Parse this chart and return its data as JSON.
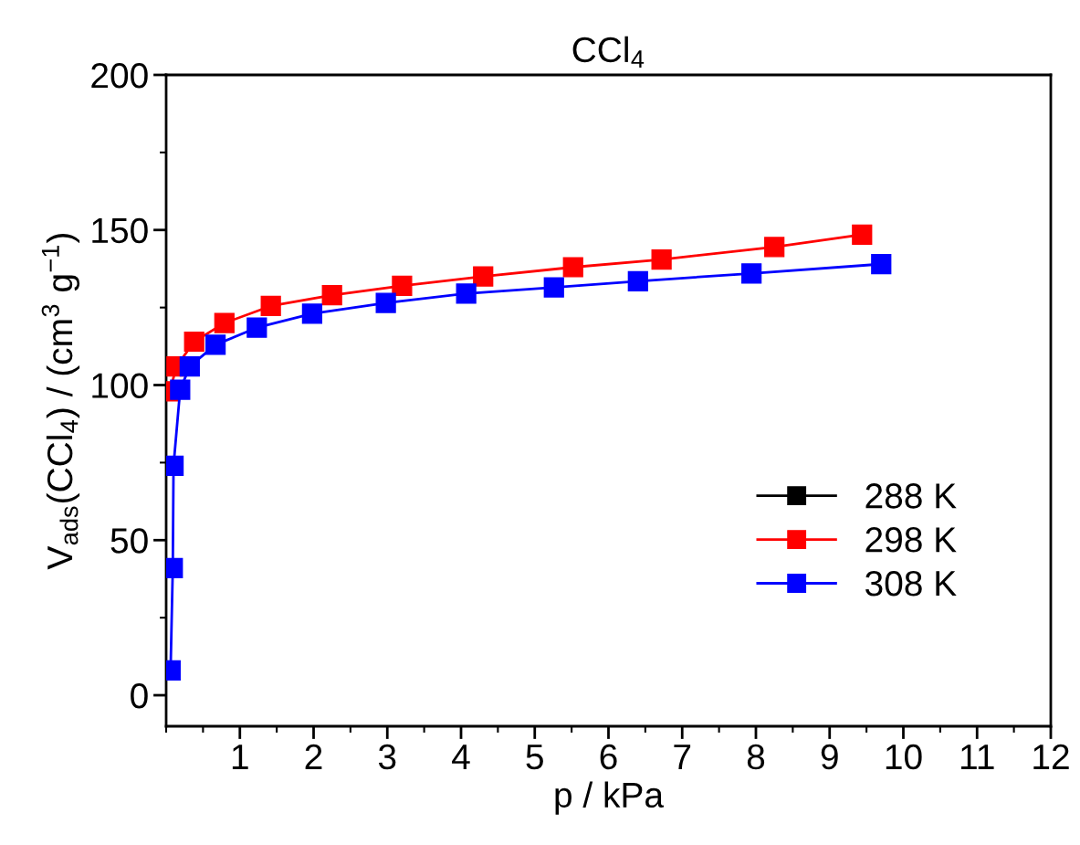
{
  "chart_data": {
    "type": "line",
    "title": "CCl$_{4}$",
    "xlabel": "p / kPa",
    "ylabel": "V$_{ads}$(CCl$_{4}$) / (cm$^{3}$ g$^{−1}$)",
    "xlim": [
      0,
      12
    ],
    "ylim": [
      -10,
      200
    ],
    "xticks": [
      1,
      2,
      3,
      4,
      5,
      6,
      7,
      8,
      9,
      10,
      11,
      12
    ],
    "yticks": [
      0,
      50,
      100,
      150,
      200
    ],
    "marker": "square",
    "line_style": "solid",
    "grid": false,
    "legend": "bottom right",
    "series": [
      {
        "name": "288 K",
        "color": "#000000"
      },
      {
        "name": "298 K",
        "color": "#ff0000",
        "x": [
          0.05,
          0.14,
          0.38,
          0.79,
          1.42,
          2.25,
          3.2,
          4.3,
          5.52,
          6.72,
          8.25,
          9.44
        ],
        "values": [
          98,
          106,
          114,
          120,
          125.5,
          129,
          132,
          135,
          138,
          140.5,
          144.5,
          148.5
        ]
      },
      {
        "name": "308 K",
        "color": "#0000ff",
        "x": [
          0.06,
          0.09,
          0.1,
          0.19,
          0.32,
          0.67,
          1.23,
          1.98,
          2.98,
          4.07,
          5.26,
          6.4,
          7.94,
          9.7
        ],
        "values": [
          8,
          41,
          74,
          98.5,
          106,
          113,
          118.5,
          123,
          126.5,
          129.5,
          131.5,
          133.5,
          136,
          139
        ]
      }
    ]
  }
}
